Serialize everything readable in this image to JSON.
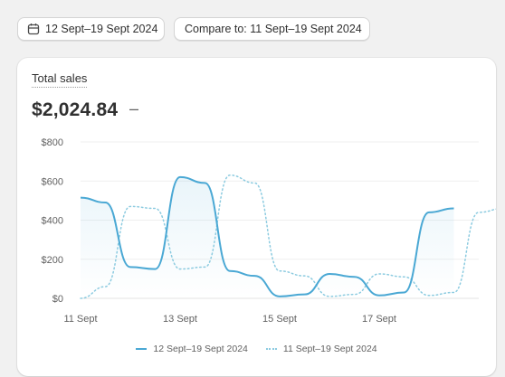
{
  "toolbar": {
    "date_range_label": "12 Sept–19 Sept 2024",
    "compare_label": "Compare to: 11 Sept–19 Sept 2024"
  },
  "card": {
    "title": "Total sales",
    "value": "$2,024.84",
    "change": "–"
  },
  "colors": {
    "primary": "#4aa8d4",
    "comparison": "#8ccbe0"
  },
  "chart_data": {
    "type": "line",
    "x_tick_labels": [
      "11 Sept",
      "13 Sept",
      "15 Sept",
      "17 Sept"
    ],
    "y_tick_labels": [
      "$0",
      "$200",
      "$400",
      "$600",
      "$800"
    ],
    "ylim": [
      0,
      800
    ],
    "series": [
      {
        "name": "12 Sept–19 Sept 2024",
        "style": "solid",
        "values": [
          515,
          490,
          160,
          150,
          620,
          590,
          140,
          115,
          10,
          20,
          125,
          110,
          15,
          30,
          440,
          460
        ]
      },
      {
        "name": "11 Sept–19 Sept 2024",
        "style": "dotted",
        "values": [
          0,
          60,
          470,
          460,
          150,
          160,
          630,
          590,
          140,
          115,
          10,
          20,
          125,
          110,
          15,
          30,
          440,
          460
        ]
      }
    ]
  }
}
